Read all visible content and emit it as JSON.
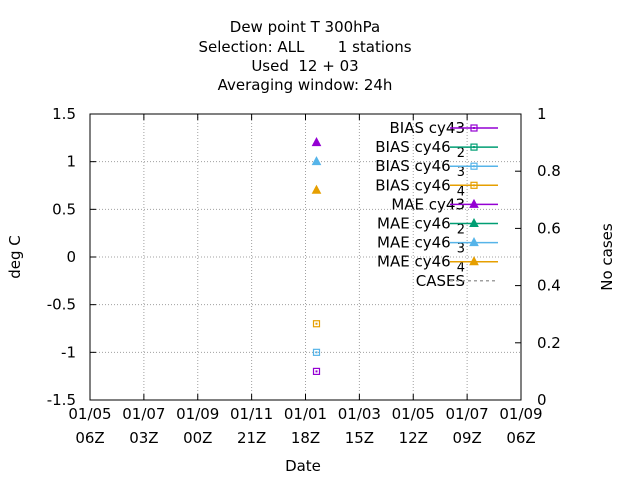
{
  "chart_data": {
    "type": "scatter",
    "title_lines": [
      "Dew point T 300hPa",
      "Selection: ALL       1 stations",
      "Used  12 + 03",
      "Averaging window: 24h"
    ],
    "xlabel": "Date",
    "ylabel": "deg C",
    "y2label": "No cases",
    "ylim": [
      -1.5,
      1.5
    ],
    "y2lim": [
      0,
      1
    ],
    "yticks": [
      "1.5",
      "1",
      "0.5",
      "0",
      "-0.5",
      "-1",
      "-1.5"
    ],
    "y2ticks": [
      "1",
      "0.8",
      "0.6",
      "0.4",
      "0.2",
      "0"
    ],
    "xticks": [
      {
        "date": "01/05",
        "time": "06Z"
      },
      {
        "date": "01/07",
        "time": "03Z"
      },
      {
        "date": "01/09",
        "time": "00Z"
      },
      {
        "date": "01/11",
        "time": "21Z"
      },
      {
        "date": "01/01",
        "time": "18Z"
      },
      {
        "date": "01/03",
        "time": "15Z"
      },
      {
        "date": "01/05",
        "time": "12Z"
      },
      {
        "date": "01/07",
        "time": "09Z"
      },
      {
        "date": "01/09",
        "time": "06Z"
      }
    ],
    "grid": true,
    "legend_position": "top-right",
    "series": [
      {
        "name": "BIAS cy43",
        "sub": "",
        "color": "#9400d3",
        "marker": "square",
        "points": [
          {
            "x": "01/01 18Z+",
            "y": -1.2
          }
        ]
      },
      {
        "name": "BIAS cy46",
        "sub": "2",
        "color": "#009e73",
        "marker": "square",
        "points": []
      },
      {
        "name": "BIAS cy46",
        "sub": "3",
        "color": "#56b4e9",
        "marker": "square",
        "points": [
          {
            "x": "01/01 18Z+",
            "y": -1.0
          }
        ]
      },
      {
        "name": "BIAS cy46",
        "sub": "4",
        "color": "#e69f00",
        "marker": "square",
        "points": [
          {
            "x": "01/01 18Z+",
            "y": -0.7
          }
        ]
      },
      {
        "name": "MAE cy43",
        "sub": "",
        "color": "#9400d3",
        "marker": "triangle",
        "points": [
          {
            "x": "01/01 18Z+",
            "y": 1.2
          }
        ]
      },
      {
        "name": "MAE cy46",
        "sub": "2",
        "color": "#009e73",
        "marker": "triangle",
        "points": []
      },
      {
        "name": "MAE cy46",
        "sub": "3",
        "color": "#56b4e9",
        "marker": "triangle",
        "points": [
          {
            "x": "01/01 18Z+",
            "y": 1.0
          }
        ]
      },
      {
        "name": "MAE cy46",
        "sub": "4",
        "color": "#e69f00",
        "marker": "triangle",
        "points": [
          {
            "x": "01/01 18Z+",
            "y": 0.7
          }
        ]
      },
      {
        "name": "CASES",
        "sub": "",
        "color": "#a0a0a0",
        "marker": "dash",
        "points": []
      }
    ]
  }
}
